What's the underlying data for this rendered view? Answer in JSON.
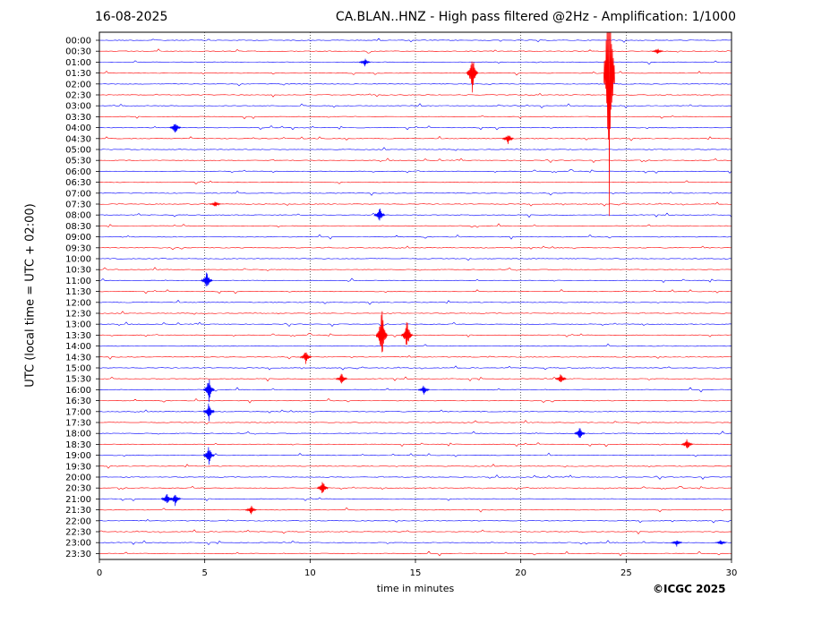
{
  "header": {
    "date": "16-08-2025",
    "title": "CA.BLAN..HNZ - High pass filtered @2Hz - Amplification: 1/1000"
  },
  "footer": {
    "copyright": "©ICGC 2025"
  },
  "colors": {
    "series_a": "#0000ff",
    "series_b": "#ff0000",
    "axis": "#000000",
    "grid": "#000000"
  },
  "chart_data": {
    "type": "line",
    "title": "CA.BLAN..HNZ - High pass filtered @2Hz - Amplification: 1/1000",
    "xlabel": "time in minutes",
    "ylabel": "UTC (local time = UTC + 02:00)",
    "xlim": [
      0,
      30
    ],
    "x_ticks": [
      0,
      5,
      10,
      15,
      20,
      25,
      30
    ],
    "y_ticks": [
      "00:00",
      "00:30",
      "01:00",
      "01:30",
      "02:00",
      "02:30",
      "03:00",
      "03:30",
      "04:00",
      "04:30",
      "05:00",
      "05:30",
      "06:00",
      "06:30",
      "07:00",
      "07:30",
      "08:00",
      "08:30",
      "09:00",
      "09:30",
      "10:00",
      "10:30",
      "11:00",
      "11:30",
      "12:00",
      "12:30",
      "13:00",
      "13:30",
      "14:00",
      "14:30",
      "15:00",
      "15:30",
      "16:00",
      "16:30",
      "17:00",
      "17:30",
      "18:00",
      "18:30",
      "19:00",
      "19:30",
      "20:00",
      "20:30",
      "21:00",
      "21:30",
      "22:00",
      "22:30",
      "23:00",
      "23:30"
    ],
    "vertical_grid": "dotted at 5, 10, 15, 20, 25",
    "trace_colors_alternate": [
      "#0000ff",
      "#ff0000"
    ],
    "events": [
      {
        "trace": "00:30",
        "minute": 26.5,
        "amplitude": 0.6
      },
      {
        "trace": "01:00",
        "minute": 12.6,
        "amplitude": 0.8
      },
      {
        "trace": "01:30",
        "minute": 17.7,
        "amplitude": 4.0
      },
      {
        "trace": "01:30",
        "minute": 24.2,
        "amplitude": 30.0
      },
      {
        "trace": "04:00",
        "minute": 3.6,
        "amplitude": 1.3
      },
      {
        "trace": "04:30",
        "minute": 19.4,
        "amplitude": 1.2
      },
      {
        "trace": "07:30",
        "minute": 5.5,
        "amplitude": 0.7
      },
      {
        "trace": "08:00",
        "minute": 13.3,
        "amplitude": 1.5
      },
      {
        "trace": "11:00",
        "minute": 5.1,
        "amplitude": 2.0
      },
      {
        "trace": "13:30",
        "minute": 13.4,
        "amplitude": 6.0
      },
      {
        "trace": "13:30",
        "minute": 14.6,
        "amplitude": 3.0
      },
      {
        "trace": "14:30",
        "minute": 9.8,
        "amplitude": 1.5
      },
      {
        "trace": "15:30",
        "minute": 11.5,
        "amplitude": 1.2
      },
      {
        "trace": "15:30",
        "minute": 21.9,
        "amplitude": 1.2
      },
      {
        "trace": "16:00",
        "minute": 5.2,
        "amplitude": 2.5
      },
      {
        "trace": "16:00",
        "minute": 15.4,
        "amplitude": 1.0
      },
      {
        "trace": "17:00",
        "minute": 5.2,
        "amplitude": 2.0
      },
      {
        "trace": "18:00",
        "minute": 22.8,
        "amplitude": 1.2
      },
      {
        "trace": "18:30",
        "minute": 27.9,
        "amplitude": 1.2
      },
      {
        "trace": "19:00",
        "minute": 5.2,
        "amplitude": 2.0
      },
      {
        "trace": "20:30",
        "minute": 10.6,
        "amplitude": 1.5
      },
      {
        "trace": "21:00",
        "minute": 3.2,
        "amplitude": 1.3
      },
      {
        "trace": "21:00",
        "minute": 3.6,
        "amplitude": 1.3
      },
      {
        "trace": "21:30",
        "minute": 7.2,
        "amplitude": 1.0
      },
      {
        "trace": "23:00",
        "minute": 27.4,
        "amplitude": 0.8
      },
      {
        "trace": "23:00",
        "minute": 29.5,
        "amplitude": 0.6
      }
    ]
  }
}
